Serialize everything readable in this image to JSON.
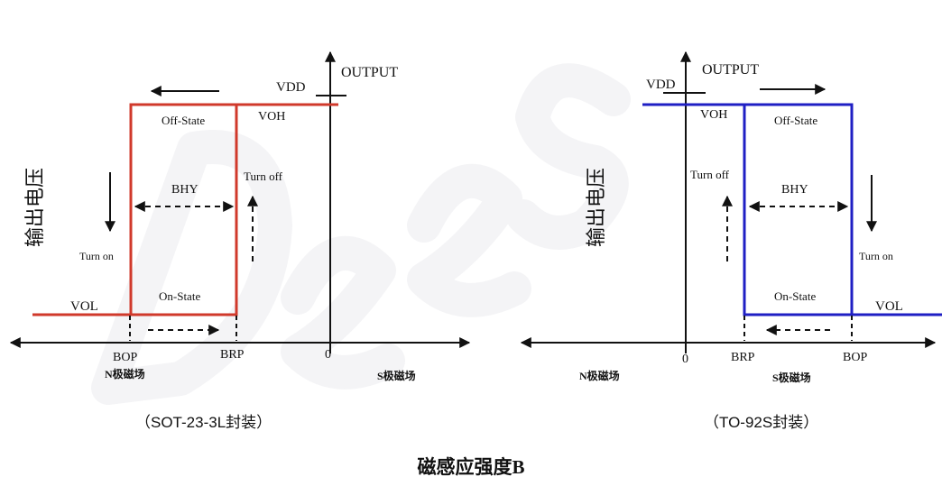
{
  "colors": {
    "left_curve": "#d0392b",
    "right_curve": "#1f1fc4",
    "ink": "#111111"
  },
  "watermark": "Dees",
  "caption": "磁感应强度B",
  "left": {
    "output": "OUTPUT",
    "vdd": "VDD",
    "voh": "VOH",
    "vol": "VOL",
    "y_label": "输出电压",
    "off_state": "Off-State",
    "on_state": "On-State",
    "bhy": "BHY",
    "turn_off": "Turn off",
    "turn_on": "Turn on",
    "bop": "BOP",
    "brp": "BRP",
    "zero": "0",
    "n_field": "N极磁场",
    "s_field": "S极磁场",
    "package": "（SOT-23-3L封装）"
  },
  "right": {
    "output": "OUTPUT",
    "vdd": "VDD",
    "voh": "VOH",
    "vol": "VOL",
    "y_label": "输出电压",
    "off_state": "Off-State",
    "on_state": "On-State",
    "bhy": "BHY",
    "turn_off": "Turn off",
    "turn_on": "Turn on",
    "bop": "BOP",
    "brp": "BRP",
    "zero": "0",
    "n_field": "N极磁场",
    "s_field": "S极磁场",
    "package": "（TO-92S封装）"
  }
}
